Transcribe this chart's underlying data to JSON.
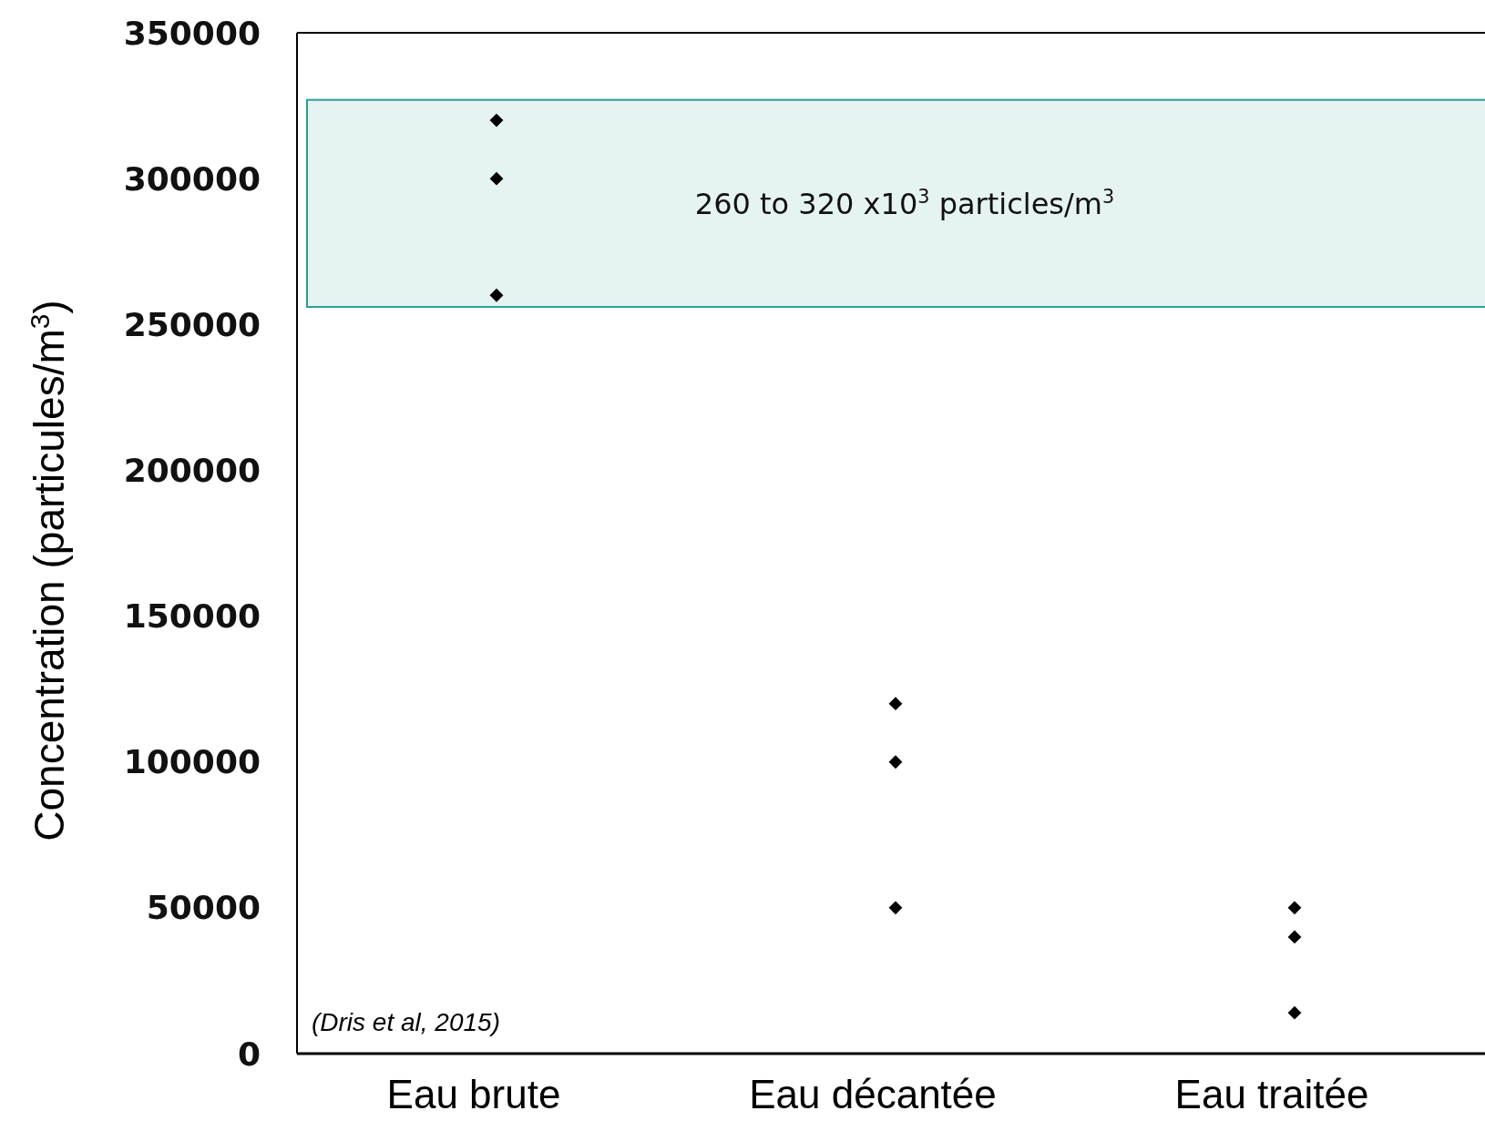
{
  "chart_data": {
    "type": "scatter",
    "categories": [
      "Eau brute",
      "Eau décantée",
      "Eau traitée"
    ],
    "ylabel": "Concentration (particules/m$^{3}$)",
    "ylim": [
      0,
      350000
    ],
    "yticks": [
      0,
      50000,
      100000,
      150000,
      200000,
      250000,
      300000,
      350000
    ],
    "series": [
      {
        "color": "#000000",
        "x": [
          "Eau brute",
          "Eau brute",
          "Eau brute",
          "Eau décantée",
          "Eau décantée",
          "Eau décantée",
          "Eau traitée",
          "Eau traitée",
          "Eau traitée"
        ],
        "values": [
          320000,
          300000,
          260000,
          120000,
          100000,
          50000,
          50000,
          40000,
          14000
        ]
      }
    ],
    "marker": "diamond",
    "grid": false,
    "bands": [
      {
        "axis": "y",
        "from": 256000,
        "to": 327000,
        "label": "260 to 320 x10$^{3}$ particles/m$^{3}$",
        "color": "#2a9d94"
      }
    ],
    "annotations": [
      "(Dris et al, 2015)"
    ]
  }
}
